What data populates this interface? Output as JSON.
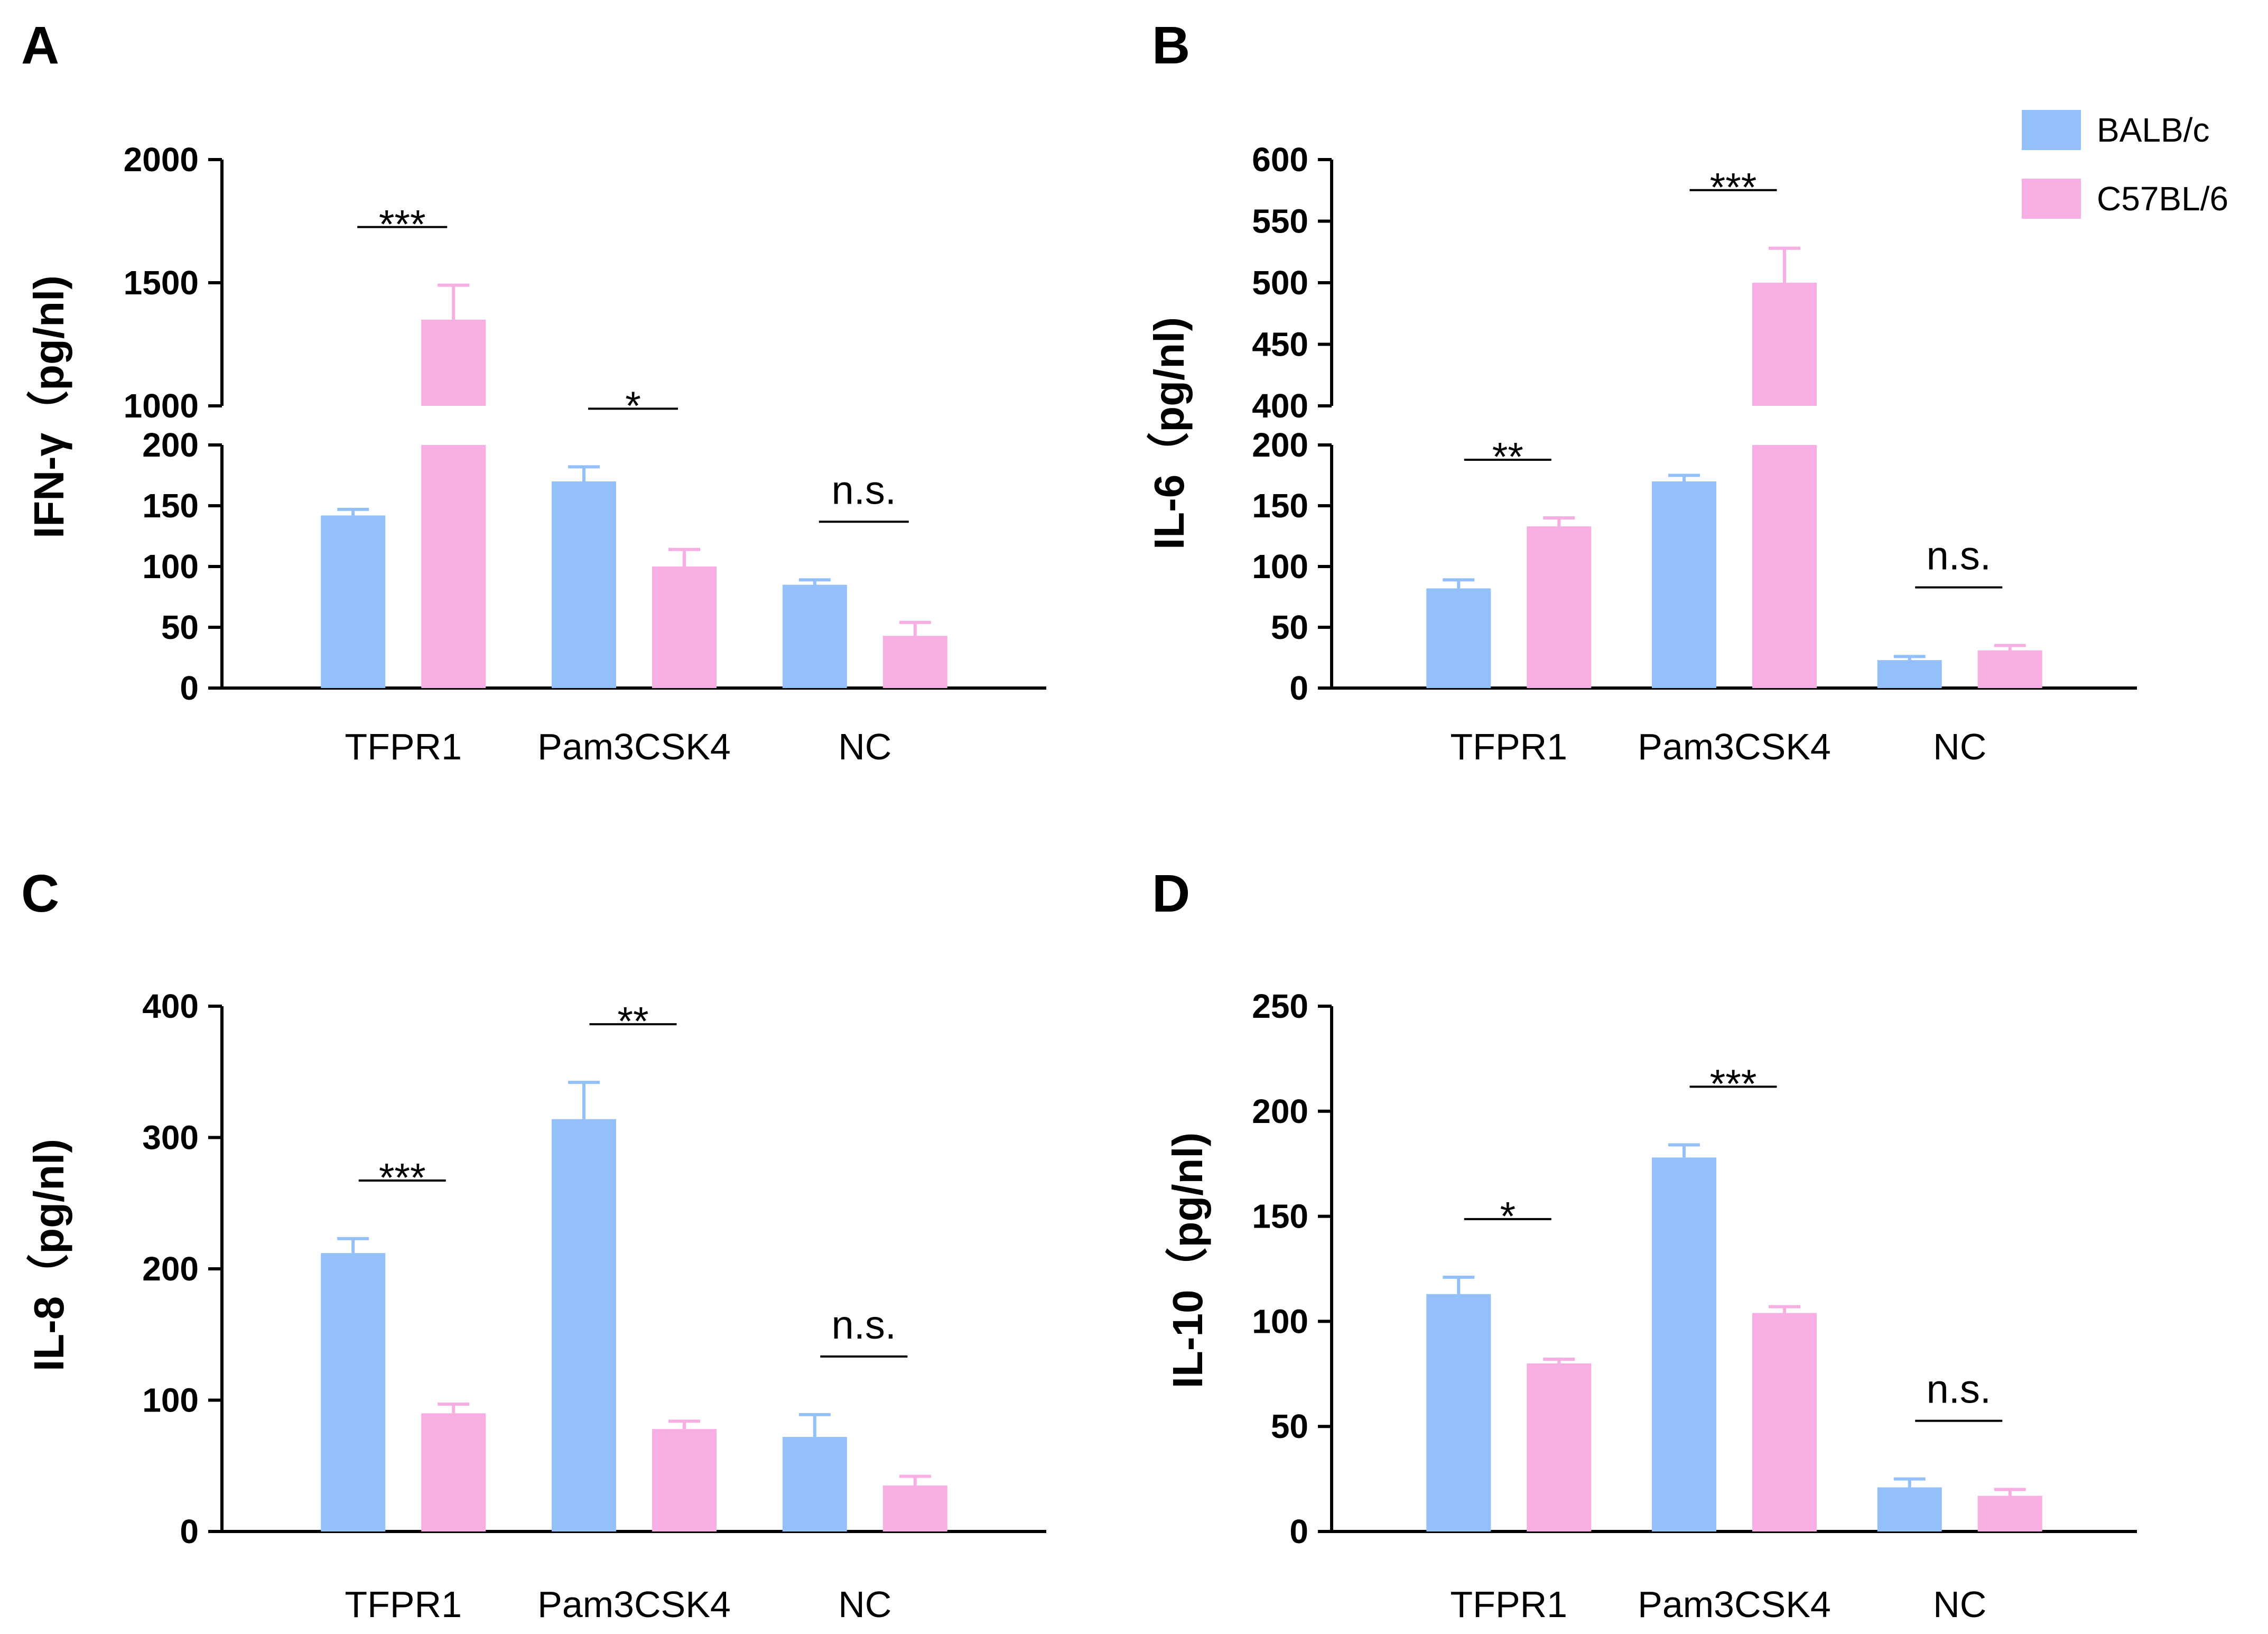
{
  "legend": {
    "entries": [
      {
        "label": "BALB/c",
        "color": "#93c0f8"
      },
      {
        "label": "C57BL/6",
        "color": "#f7aee3"
      }
    ]
  },
  "chart_data": [
    {
      "panel": "A",
      "type": "bar",
      "ylabel": "IFN-γ（pg/nl)",
      "categories": [
        "TFPR1",
        "Pam3CSK4",
        "NC"
      ],
      "series": [
        {
          "name": "BALB/c",
          "values": [
            142,
            170,
            85
          ],
          "errors": [
            5,
            12,
            4
          ]
        },
        {
          "name": "C57BL/6",
          "values": [
            1350,
            100,
            43
          ],
          "errors": [
            140,
            14,
            11
          ]
        }
      ],
      "significance": [
        "***",
        "*",
        "n.s."
      ],
      "axis_break": {
        "lower": {
          "range": [
            0,
            200
          ],
          "ticks": [
            "0",
            "50",
            "100",
            "150",
            "200"
          ]
        },
        "upper": {
          "range": [
            1000,
            2000
          ],
          "ticks": [
            "1000",
            "1500",
            "2000"
          ]
        }
      }
    },
    {
      "panel": "B",
      "type": "bar",
      "ylabel": "IL-6（pg/nl)",
      "categories": [
        "TFPR1",
        "Pam3CSK4",
        "NC"
      ],
      "series": [
        {
          "name": "BALB/c",
          "values": [
            82,
            170,
            23
          ],
          "errors": [
            7,
            5,
            3
          ]
        },
        {
          "name": "C57BL/6",
          "values": [
            133,
            500,
            31
          ],
          "errors": [
            7,
            28,
            4
          ]
        }
      ],
      "significance": [
        "**",
        "***",
        "n.s."
      ],
      "axis_break": {
        "lower": {
          "range": [
            0,
            200
          ],
          "ticks": [
            "0",
            "50",
            "100",
            "150",
            "200"
          ]
        },
        "upper": {
          "range": [
            400,
            600
          ],
          "ticks": [
            "400",
            "450",
            "500",
            "550",
            "600"
          ]
        }
      }
    },
    {
      "panel": "C",
      "type": "bar",
      "ylabel": "IL-8（pg/nl)",
      "categories": [
        "TFPR1",
        "Pam3CSK4",
        "NC"
      ],
      "series": [
        {
          "name": "BALB/c",
          "values": [
            212,
            314,
            72
          ],
          "errors": [
            11,
            28,
            17
          ]
        },
        {
          "name": "C57BL/6",
          "values": [
            90,
            78,
            35
          ],
          "errors": [
            7,
            6,
            7
          ]
        }
      ],
      "significance": [
        "***",
        "**",
        "n.s."
      ],
      "ylim": [
        0,
        400
      ],
      "ticks": [
        "0",
        "100",
        "200",
        "300",
        "400"
      ]
    },
    {
      "panel": "D",
      "type": "bar",
      "ylabel": "IL-10（pg/nl)",
      "categories": [
        "TFPR1",
        "Pam3CSK4",
        "NC"
      ],
      "series": [
        {
          "name": "BALB/c",
          "values": [
            113,
            178,
            21
          ],
          "errors": [
            8,
            6,
            4
          ]
        },
        {
          "name": "C57BL/6",
          "values": [
            80,
            104,
            17
          ],
          "errors": [
            2,
            3,
            3
          ]
        }
      ],
      "significance": [
        "*",
        "***",
        "n.s."
      ],
      "ylim": [
        0,
        250
      ],
      "ticks": [
        "0",
        "50",
        "100",
        "150",
        "200",
        "250"
      ]
    }
  ]
}
